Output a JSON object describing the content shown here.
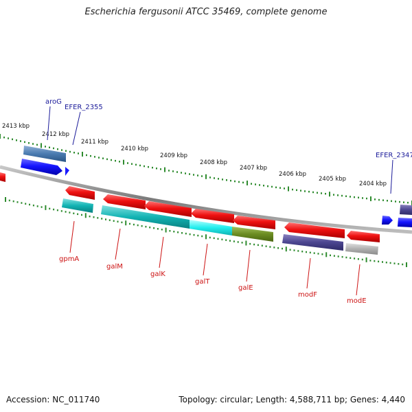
{
  "title": "Escherichia fergusonii ATCC 35469, complete genome",
  "footer": {
    "accession": "Accession: NC_011740",
    "summary": "Topology: circular; Length: 4,588,711 bp; Genes: 4,440"
  },
  "scale_labels": [
    "2413 kbp",
    "2412 kbp",
    "2411 kbp",
    "2410 kbp",
    "2409 kbp",
    "2408 kbp",
    "2407 kbp",
    "2406 kbp",
    "2405 kbp",
    "2404 kbp"
  ],
  "top_gene_labels": [
    "aroG",
    "EFER_2355",
    "EFER_2347"
  ],
  "bottom_gene_labels": [
    "gpmA",
    "galM",
    "galK",
    "galT",
    "galE",
    "modF",
    "modE"
  ],
  "colors": {
    "backbone": "#8a8a8a",
    "tick": "#2e8b2e",
    "forward_gene": "#1a1aff",
    "reverse_gene": "#ee1111",
    "top_label": "#1a1a99",
    "bottom_label": "#cc1111"
  }
}
